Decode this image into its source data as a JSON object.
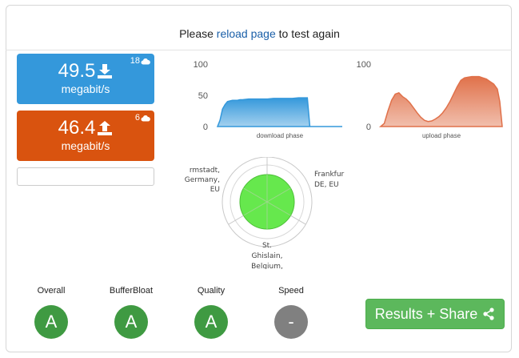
{
  "header": {
    "prefix": "Please",
    "link": "reload page",
    "suffix": "to test again"
  },
  "download": {
    "value": "49.5",
    "unit": "megabit/s",
    "servers": "18",
    "color": "#3498db"
  },
  "upload": {
    "value": "46.4",
    "unit": "megabit/s",
    "servers": "6",
    "color": "#d9530f"
  },
  "chart_data": [
    {
      "type": "area",
      "xlabel": "download phase",
      "yticks": [
        "100",
        "50",
        "0"
      ],
      "ylim": [
        0,
        100
      ],
      "x": [
        0,
        2,
        4,
        6,
        8,
        10,
        12,
        14,
        16,
        18,
        20,
        25,
        30,
        35,
        40,
        45,
        50,
        55,
        60,
        65,
        70,
        72,
        74,
        76,
        100
      ],
      "values": [
        0,
        10,
        28,
        35,
        40,
        41,
        42,
        42,
        42,
        43,
        43,
        44,
        44,
        44,
        44,
        45,
        45,
        45,
        45,
        46,
        46,
        46,
        0,
        0,
        0
      ],
      "color": "#3498db"
    },
    {
      "type": "area",
      "xlabel": "upload phase",
      "yticks": [
        "100",
        "0"
      ],
      "ylim": [
        0,
        100
      ],
      "x": [
        0,
        3,
        6,
        9,
        12,
        15,
        18,
        21,
        24,
        27,
        30,
        33,
        36,
        39,
        42,
        45,
        48,
        51,
        54,
        57,
        60,
        63,
        66,
        69,
        72,
        75,
        78,
        81,
        84,
        87,
        90,
        93,
        96,
        98,
        100
      ],
      "values": [
        0,
        5,
        25,
        42,
        52,
        54,
        48,
        44,
        38,
        30,
        22,
        15,
        10,
        8,
        9,
        12,
        16,
        22,
        30,
        40,
        52,
        64,
        74,
        78,
        79,
        80,
        80,
        80,
        78,
        76,
        72,
        68,
        60,
        40,
        0
      ],
      "color": "#e0714a"
    }
  ],
  "radar": {
    "labels": {
      "left": [
        "rmstadt,",
        "Germany,",
        "EU"
      ],
      "right": [
        "Frankfur",
        "DE, EU"
      ],
      "bottom": [
        "St.",
        "Ghislain,",
        "Belgium,"
      ]
    },
    "fill": "#66e84d"
  },
  "grades": [
    {
      "label": "Overall",
      "value": "A",
      "color": "#3f9a42"
    },
    {
      "label": "BufferBloat",
      "value": "A",
      "color": "#3f9a42"
    },
    {
      "label": "Quality",
      "value": "A",
      "color": "#3f9a42"
    },
    {
      "label": "Speed",
      "value": "-",
      "color": "#808080"
    }
  ],
  "results_button": {
    "label": "Results + Share",
    "icon": "share-icon"
  }
}
